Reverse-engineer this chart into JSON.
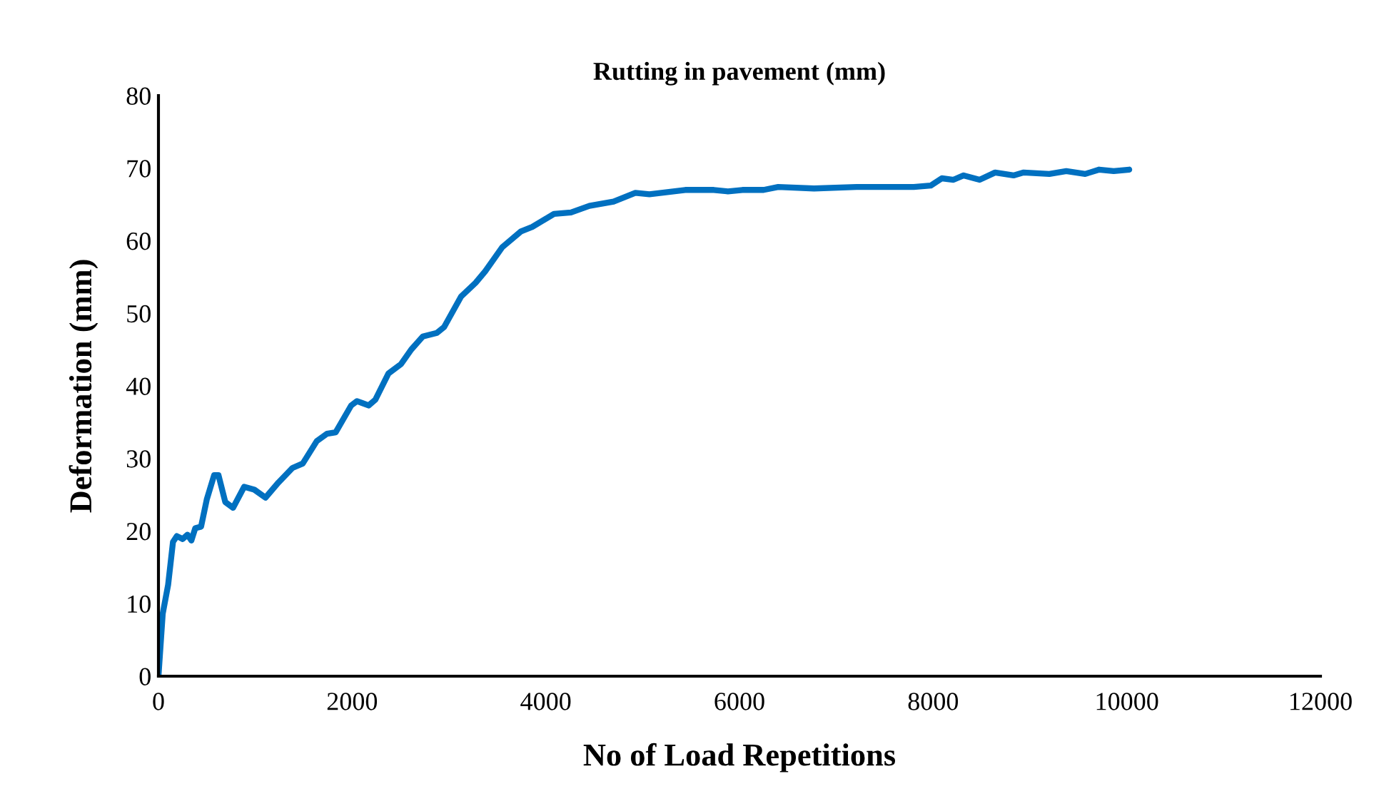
{
  "chart_data": {
    "type": "line",
    "title": "Rutting in pavement (mm)",
    "xlabel": "No of Load Repetitions",
    "ylabel": "Deformation (mm)",
    "xlim": [
      0,
      12000
    ],
    "xticks": [
      0,
      2000,
      4000,
      6000,
      8000,
      10000,
      12000
    ],
    "ylim": [
      0,
      80
    ],
    "yticks": [
      0,
      10,
      20,
      30,
      40,
      50,
      60,
      70,
      80
    ],
    "grid": false,
    "legend": false,
    "marker": "none",
    "line_style": "solid",
    "series": [
      {
        "color": "#0070c0",
        "x": [
          0,
          44,
          100,
          150,
          190,
          250,
          300,
          340,
          380,
          440,
          500,
          575,
          620,
          690,
          770,
          885,
          990,
          1105,
          1240,
          1385,
          1490,
          1635,
          1740,
          1830,
          1990,
          2050,
          2170,
          2240,
          2375,
          2505,
          2610,
          2730,
          2875,
          2950,
          3125,
          3275,
          3375,
          3550,
          3745,
          3860,
          4085,
          4260,
          4450,
          4700,
          4925,
          5070,
          5440,
          5735,
          5880,
          6030,
          6250,
          6400,
          6770,
          7210,
          7800,
          7975,
          8090,
          8210,
          8315,
          8480,
          8640,
          8830,
          8935,
          9200,
          9375,
          9570,
          9715,
          9865,
          10025
        ],
        "values": [
          0,
          8.6,
          12.6,
          18.5,
          19.3,
          18.9,
          19.5,
          18.7,
          20.4,
          20.6,
          24.4,
          27.7,
          27.7,
          24.0,
          23.2,
          26.1,
          25.7,
          24.6,
          26.7,
          28.7,
          29.3,
          32.4,
          33.4,
          33.6,
          37.3,
          37.9,
          37.3,
          38.1,
          41.7,
          43.0,
          45.0,
          46.8,
          47.3,
          48.1,
          52.3,
          54.2,
          55.8,
          59.1,
          61.3,
          61.9,
          63.7,
          63.9,
          64.8,
          65.4,
          66.6,
          66.4,
          67.0,
          67.0,
          66.8,
          67.0,
          67.0,
          67.4,
          67.2,
          67.4,
          67.4,
          67.6,
          68.6,
          68.4,
          69.0,
          68.4,
          69.4,
          69.0,
          69.4,
          69.2,
          69.6,
          69.2,
          69.8,
          69.6,
          69.8
        ]
      }
    ]
  }
}
